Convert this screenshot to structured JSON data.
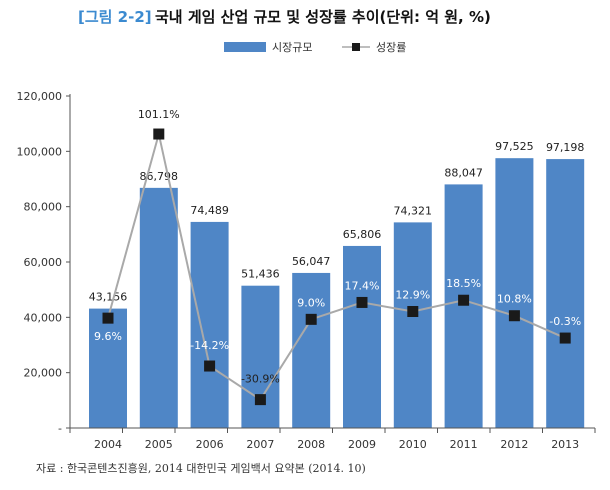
{
  "figure": {
    "label": "[그림 2-2]",
    "title": "국내 게임 산업 규모 및 성장률 추이(단위: 억 원, %)",
    "source": "자료 : 한국콘텐츠진흥원, 2014 대한민국 게임백서 요약본 (2014. 10)"
  },
  "colors": {
    "bar": "#4f86c6",
    "line": "#a9a9a9",
    "marker": "#1a1a1a",
    "title_label": "#3b8ad0"
  },
  "chart_data": {
    "type": "bar",
    "categories": [
      "2004",
      "2005",
      "2006",
      "2007",
      "2008",
      "2009",
      "2010",
      "2011",
      "2012",
      "2013"
    ],
    "ylim": [
      0,
      120000
    ],
    "yticks": [
      {
        "value": 0,
        "label": "-"
      },
      {
        "value": 20000,
        "label": "20,000"
      },
      {
        "value": 40000,
        "label": "40,000"
      },
      {
        "value": 60000,
        "label": "60,000"
      },
      {
        "value": 80000,
        "label": "80,000"
      },
      {
        "value": 100000,
        "label": "100,000"
      },
      {
        "value": 120000,
        "label": "120,000"
      }
    ],
    "legend_position": "top-center",
    "grid": false,
    "series": [
      {
        "name": "시장규모",
        "kind": "bar",
        "values": [
          43156,
          86798,
          74489,
          51436,
          56047,
          65806,
          74321,
          88047,
          97525,
          97198
        ],
        "labels": [
          "43,156",
          "86,798",
          "74,489",
          "51,436",
          "56,047",
          "65,806",
          "74,321",
          "88,047",
          "97,525",
          "97,198"
        ]
      },
      {
        "name": "성장률",
        "kind": "line",
        "values": [
          9.6,
          101.1,
          -14.2,
          -30.9,
          9.0,
          17.4,
          12.9,
          18.5,
          10.8,
          -0.3
        ],
        "labels": [
          "9.6%",
          "101.1%",
          "-14.2%",
          "-30.9%",
          "9.0%",
          "17.4%",
          "12.9%",
          "18.5%",
          "10.8%",
          "-0.3%"
        ],
        "ylim": [
          -45,
          120
        ]
      }
    ]
  }
}
